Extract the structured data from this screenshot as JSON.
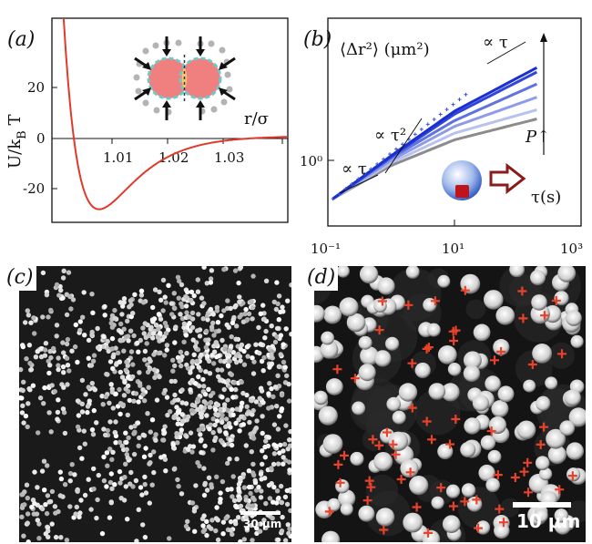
{
  "figure": {
    "panels": {
      "a": {
        "label": "(a)"
      },
      "b": {
        "label": "(b)"
      },
      "c": {
        "label": "(c)",
        "scalebar": "30 μm"
      },
      "d": {
        "label": "(d)",
        "scalebar": "10 μm",
        "marker_color": "#e8432a"
      }
    }
  },
  "chart_data": [
    {
      "panel": "a",
      "type": "line",
      "ylabel": "U/k_B T",
      "xlabel": "r/σ",
      "xticks": [
        "1.01",
        "1.02",
        "1.03"
      ],
      "yticks": [
        "20",
        "0",
        "-20"
      ],
      "xlim": [
        1.0,
        1.04
      ],
      "ylim": [
        -33,
        45
      ],
      "color": "#e03a2a",
      "potential": {
        "x0": 1.0055,
        "depth": 28,
        "min_x": 1.008,
        "note_style": "Morse-like"
      },
      "inset": "two-colloids-with-depletants"
    },
    {
      "panel": "b",
      "type": "line",
      "ylabel": "⟨Δr²⟩ (μm²)",
      "xlabel": "τ(s)",
      "xticks": [
        "10⁻¹",
        "10¹",
        "10³"
      ],
      "yticks": [
        "10⁰"
      ],
      "xscale": "log",
      "yscale": "log",
      "xlim": [
        0.1,
        1000
      ],
      "annotations": [
        "∝ τ",
        "∝ τ²",
        "∝ τ"
      ],
      "arrow_label": "P↑",
      "series": [
        {
          "values": [
            [
              0.12,
              0.3
            ],
            [
              1,
              0.9
            ],
            [
              10,
              2.8
            ],
            [
              200,
              8.5
            ]
          ],
          "color": "#1a2fd0"
        },
        {
          "values": [
            [
              0.12,
              0.3
            ],
            [
              1,
              0.88
            ],
            [
              10,
              2.6
            ],
            [
              200,
              7.6
            ]
          ],
          "color": "#2f46d8"
        },
        {
          "values": [
            [
              0.12,
              0.3
            ],
            [
              1,
              0.85
            ],
            [
              10,
              2.2
            ],
            [
              200,
              5.6
            ]
          ],
          "color": "#5f72e0"
        },
        {
          "values": [
            [
              0.12,
              0.3
            ],
            [
              1,
              0.8
            ],
            [
              10,
              1.9
            ],
            [
              200,
              4.0
            ]
          ],
          "color": "#8e9ce8"
        },
        {
          "values": [
            [
              0.12,
              0.3
            ],
            [
              1,
              0.75
            ],
            [
              10,
              1.6
            ],
            [
              200,
              2.9
            ]
          ],
          "color": "#b9c2ef"
        },
        {
          "values": [
            [
              0.12,
              0.3
            ],
            [
              1,
              0.7
            ],
            [
              10,
              1.35
            ],
            [
              200,
              2.3
            ]
          ],
          "color": "#8c8c8c"
        }
      ]
    }
  ]
}
